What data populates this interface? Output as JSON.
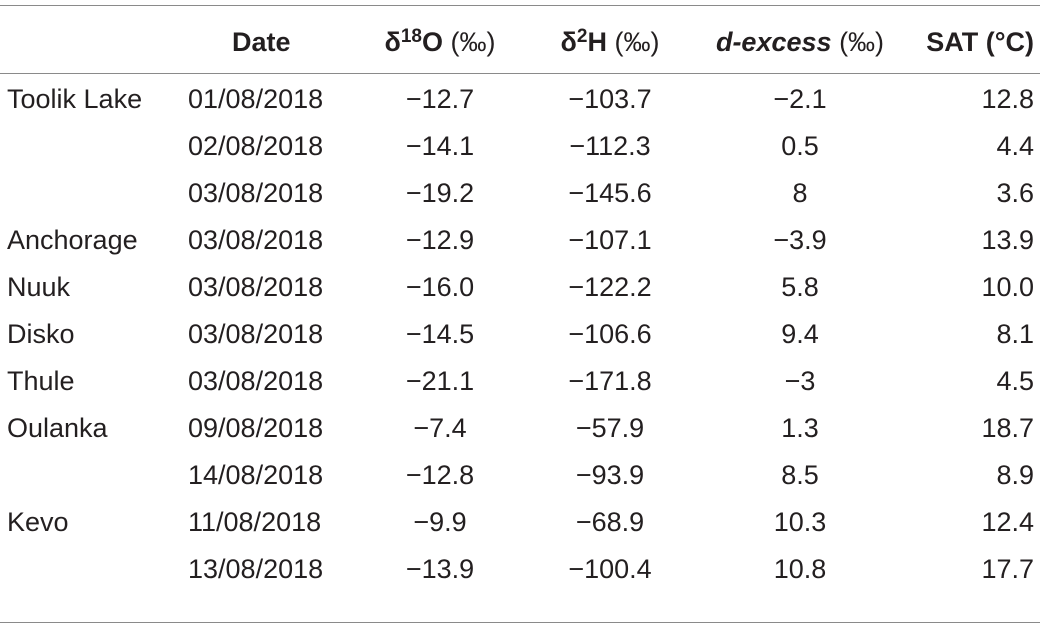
{
  "table": {
    "headers": {
      "site": "",
      "date": "Date",
      "o18_prefix": "δ",
      "o18_sup": "18",
      "o18_suffix": "O",
      "o18_unit": "(‰)",
      "h2_prefix": "δ",
      "h2_sup": "2",
      "h2_suffix": "H",
      "h2_unit": "(‰)",
      "dex_name": "d-excess",
      "dex_unit": "(‰)",
      "sat": "SAT (°C)"
    },
    "rows": [
      {
        "site": "Toolik Lake",
        "date": "01/08/2018",
        "o18": "−12.7",
        "h2": "−103.7",
        "dex": "−2.1",
        "sat": "12.8"
      },
      {
        "site": "",
        "date": "02/08/2018",
        "o18": "−14.1",
        "h2": "−112.3",
        "dex": "0.5",
        "sat": "4.4"
      },
      {
        "site": "",
        "date": "03/08/2018",
        "o18": "−19.2",
        "h2": "−145.6",
        "dex": "8",
        "sat": "3.6"
      },
      {
        "site": "Anchorage",
        "date": "03/08/2018",
        "o18": "−12.9",
        "h2": "−107.1",
        "dex": "−3.9",
        "sat": "13.9"
      },
      {
        "site": "Nuuk",
        "date": "03/08/2018",
        "o18": "−16.0",
        "h2": "−122.2",
        "dex": "5.8",
        "sat": "10.0"
      },
      {
        "site": "Disko",
        "date": "03/08/2018",
        "o18": "−14.5",
        "h2": "−106.6",
        "dex": "9.4",
        "sat": "8.1"
      },
      {
        "site": "Thule",
        "date": "03/08/2018",
        "o18": "−21.1",
        "h2": "−171.8",
        "dex": "−3",
        "sat": "4.5"
      },
      {
        "site": "Oulanka",
        "date": "09/08/2018",
        "o18": "−7.4",
        "h2": "−57.9",
        "dex": "1.3",
        "sat": "18.7"
      },
      {
        "site": "",
        "date": "14/08/2018",
        "o18": "−12.8",
        "h2": "−93.9",
        "dex": "8.5",
        "sat": "8.9"
      },
      {
        "site": "Kevo",
        "date": "11/08/2018",
        "o18": "−9.9",
        "h2": "−68.9",
        "dex": "10.3",
        "sat": "12.4"
      },
      {
        "site": "",
        "date": "13/08/2018",
        "o18": "−13.9",
        "h2": "−100.4",
        "dex": "10.8",
        "sat": "17.7"
      }
    ]
  }
}
